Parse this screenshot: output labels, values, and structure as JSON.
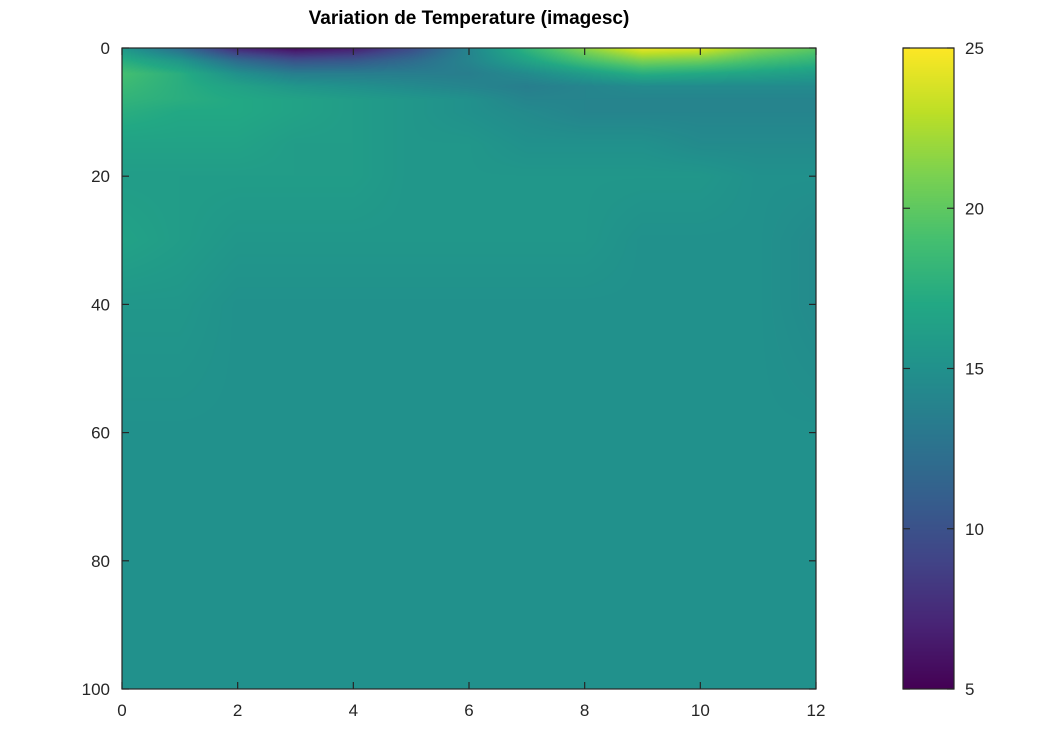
{
  "chart_data": {
    "type": "heatmap",
    "title": "Variation de Temperature (imagesc)",
    "xlabel": "",
    "ylabel": "",
    "xlim": [
      0,
      12
    ],
    "ylim": [
      0,
      100
    ],
    "y_direction": "reversed",
    "x_ticks": [
      0,
      2,
      4,
      6,
      8,
      10,
      12
    ],
    "y_ticks": [
      0,
      20,
      40,
      60,
      80,
      100
    ],
    "colorbar": {
      "min": 5,
      "max": 25,
      "ticks": [
        5,
        10,
        15,
        20,
        25
      ],
      "colormap": "viridis",
      "placement": "right"
    },
    "x": [
      0,
      1,
      2,
      3,
      4,
      5,
      6,
      7,
      8,
      9,
      10,
      11,
      12
    ],
    "y": [
      0,
      2,
      4,
      6,
      8,
      10,
      15,
      20,
      30,
      40,
      60,
      80,
      100
    ],
    "z": [
      [
        15.5,
        12.0,
        7.0,
        5.5,
        6.5,
        9.5,
        14.0,
        18.0,
        21.5,
        24.5,
        24.0,
        21.5,
        20.0
      ],
      [
        17.5,
        15.5,
        12.0,
        10.0,
        10.5,
        12.0,
        14.0,
        16.5,
        19.0,
        21.0,
        20.5,
        19.0,
        18.0
      ],
      [
        19.0,
        17.5,
        15.0,
        13.5,
        13.5,
        13.5,
        13.5,
        14.5,
        16.0,
        17.5,
        17.0,
        16.5,
        16.0
      ],
      [
        18.5,
        17.5,
        16.5,
        15.5,
        15.0,
        14.5,
        14.0,
        13.5,
        14.0,
        14.5,
        14.5,
        14.5,
        14.5
      ],
      [
        18.0,
        17.5,
        17.0,
        16.5,
        16.0,
        15.5,
        15.0,
        14.0,
        14.0,
        14.0,
        14.0,
        14.0,
        14.0
      ],
      [
        17.5,
        17.0,
        17.0,
        16.5,
        16.0,
        15.5,
        15.0,
        14.5,
        14.0,
        14.0,
        14.0,
        14.0,
        14.0
      ],
      [
        16.5,
        16.5,
        16.5,
        16.0,
        16.0,
        15.5,
        15.5,
        15.0,
        15.0,
        15.0,
        14.5,
        14.5,
        14.5
      ],
      [
        16.0,
        16.0,
        16.0,
        16.0,
        16.0,
        15.5,
        15.5,
        15.5,
        15.5,
        15.5,
        15.5,
        15.0,
        15.0
      ],
      [
        16.5,
        16.0,
        15.5,
        15.5,
        15.5,
        15.5,
        15.5,
        15.5,
        15.5,
        15.0,
        15.0,
        15.0,
        14.5
      ],
      [
        15.5,
        15.5,
        15.0,
        15.0,
        15.0,
        15.0,
        15.0,
        15.0,
        15.0,
        15.0,
        15.0,
        15.0,
        14.5
      ],
      [
        15.0,
        15.0,
        15.0,
        15.0,
        15.0,
        15.0,
        15.0,
        15.0,
        15.0,
        15.0,
        15.0,
        15.0,
        15.0
      ],
      [
        15.0,
        15.0,
        15.0,
        15.0,
        15.0,
        15.0,
        15.0,
        15.0,
        15.0,
        15.0,
        15.0,
        15.0,
        15.0
      ],
      [
        15.0,
        15.0,
        15.0,
        15.0,
        15.0,
        15.0,
        15.0,
        15.0,
        15.0,
        15.0,
        15.0,
        15.0,
        15.0
      ]
    ]
  }
}
